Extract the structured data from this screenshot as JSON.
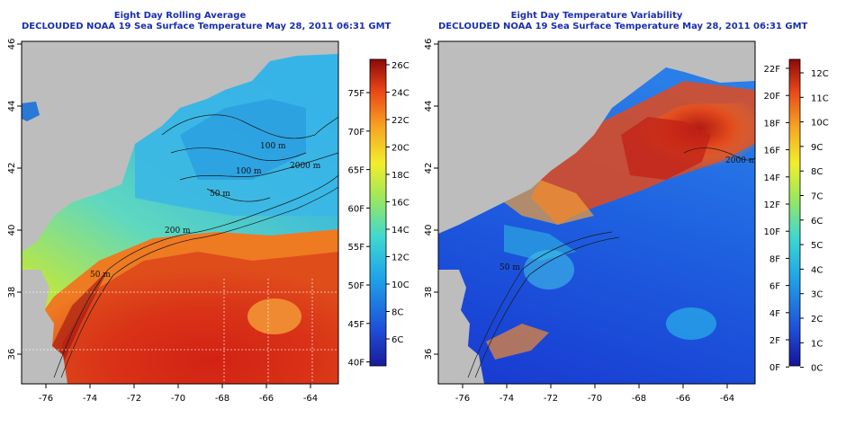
{
  "left_panel": {
    "title_line1": "Eight Day Rolling Average",
    "title_line2": "DECLOUDED NOAA 19 Sea Surface Temperature May 28, 2011 06:31 GMT",
    "colorbar_celsius": [
      "26C",
      "24C",
      "22C",
      "20C",
      "18C",
      "16C",
      "14C",
      "12C",
      "10C",
      "8C",
      "6C"
    ],
    "colorbar_fahrenheit": [
      "75F",
      "70F",
      "65F",
      "60F",
      "55F",
      "50F",
      "45F",
      "40F"
    ],
    "contour_labels": [
      "100 m",
      "2000 m",
      "100 m",
      "50 m",
      "200 m",
      "50 m"
    ]
  },
  "right_panel": {
    "title_line1": "Eight Day Temperature Variability",
    "title_line2": "DECLOUDED NOAA 19 Sea Surface Temperature May 28, 2011 06:31 GMT",
    "colorbar_celsius": [
      "12C",
      "11C",
      "10C",
      "9C",
      "8C",
      "7C",
      "6C",
      "5C",
      "4C",
      "3C",
      "2C",
      "1C",
      "0C"
    ],
    "colorbar_fahrenheit": [
      "22F",
      "20F",
      "18F",
      "16F",
      "14F",
      "12F",
      "10F",
      "8F",
      "6F",
      "4F",
      "2F",
      "0F"
    ],
    "contour_labels": [
      "2000 m",
      "50 m"
    ]
  },
  "axes": {
    "longitude_ticks": [
      "-76",
      "-74",
      "-72",
      "-70",
      "-68",
      "-66",
      "-64"
    ],
    "latitude_ticks": [
      "36",
      "38",
      "40",
      "42",
      "44",
      "46"
    ]
  },
  "colors": {
    "title": "#1a2fb0",
    "land": "#bdbdbd",
    "sst_warm": "#c81e14",
    "sst_cool": "#2fb8e6"
  }
}
